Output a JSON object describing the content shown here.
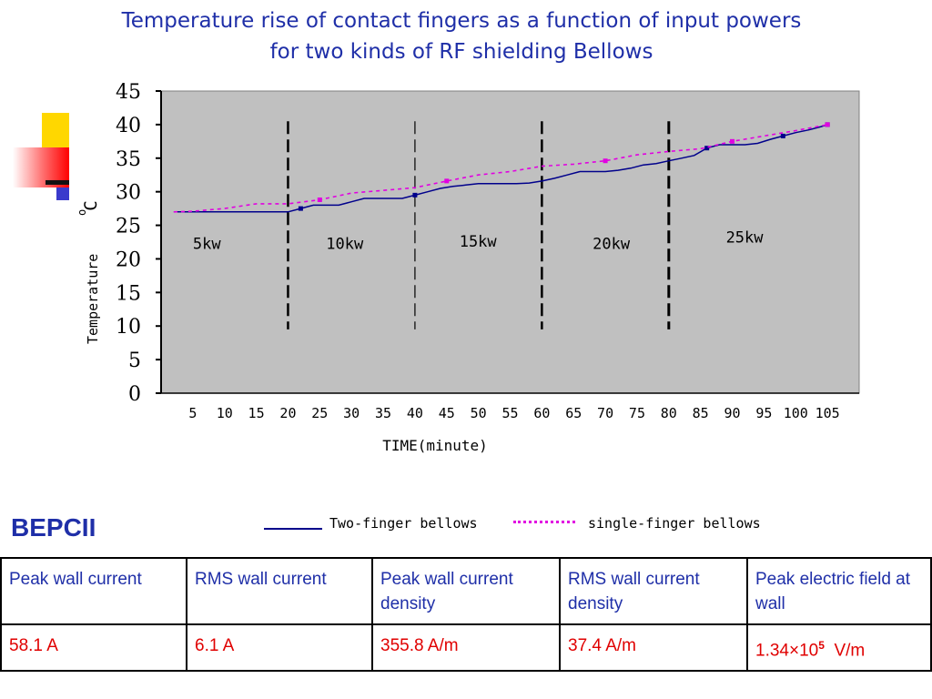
{
  "title_line1": "Temperature rise of contact fingers as a function of input powers",
  "title_line2": "for two kinds of RF shielding Bellows",
  "chart_data": {
    "type": "line",
    "xlabel": "TIME(minute)",
    "ylabel": "Temperature",
    "ylabel_unit": "o C",
    "xlim": [
      0,
      110
    ],
    "ylim": [
      0,
      45
    ],
    "xticks": [
      5,
      10,
      15,
      20,
      25,
      30,
      35,
      40,
      45,
      50,
      55,
      60,
      65,
      70,
      75,
      80,
      85,
      90,
      95,
      100,
      105
    ],
    "yticks": [
      0,
      5,
      10,
      15,
      20,
      25,
      30,
      35,
      40,
      45
    ],
    "grid": false,
    "background": "#c0c0c0",
    "phase_boundaries": [
      20,
      40,
      60,
      80
    ],
    "phases": [
      {
        "label": "5kw",
        "x": 5,
        "y": 21.5
      },
      {
        "label": "10kw",
        "x": 26,
        "y": 21.5
      },
      {
        "label": "15kw",
        "x": 47,
        "y": 21.8
      },
      {
        "label": "20kw",
        "x": 68,
        "y": 21.5
      },
      {
        "label": "25kw",
        "x": 89,
        "y": 22.4
      }
    ],
    "series": [
      {
        "name": "Two-finger bellows",
        "color": "#00008b",
        "style": "solid",
        "x": [
          2,
          5,
          10,
          15,
          18,
          20,
          22,
          24,
          26,
          28,
          30,
          32,
          34,
          36,
          38,
          40,
          42,
          44,
          46,
          48,
          50,
          52,
          54,
          56,
          58,
          60,
          62,
          64,
          66,
          68,
          70,
          72,
          74,
          76,
          78,
          80,
          82,
          84,
          86,
          88,
          90,
          92,
          94,
          96,
          98,
          100,
          102,
          104,
          105
        ],
        "y": [
          27,
          27,
          27,
          27,
          27,
          27,
          27.5,
          28,
          28,
          28,
          28.5,
          29,
          29,
          29,
          29,
          29.5,
          30,
          30.5,
          30.8,
          31,
          31.2,
          31.2,
          31.2,
          31.2,
          31.3,
          31.6,
          32,
          32.5,
          33,
          33,
          33,
          33.2,
          33.5,
          34,
          34.2,
          34.6,
          35,
          35.4,
          36.5,
          37,
          37,
          37,
          37.2,
          37.8,
          38.3,
          38.8,
          39.2,
          39.7,
          40
        ]
      },
      {
        "name": "single-finger bellows",
        "color": "#e100e1",
        "style": "dotted",
        "x": [
          2,
          5,
          10,
          15,
          20,
          25,
          30,
          35,
          40,
          45,
          50,
          55,
          60,
          65,
          70,
          75,
          80,
          85,
          90,
          95,
          100,
          105
        ],
        "y": [
          27,
          27.1,
          27.5,
          28.2,
          28.2,
          28.8,
          29.8,
          30.2,
          30.6,
          31.6,
          32.5,
          33,
          33.8,
          34.1,
          34.6,
          35.5,
          36,
          36.4,
          37.5,
          38.3,
          39.1,
          40
        ]
      }
    ]
  },
  "bepcii_label": "BEPCII",
  "legend": {
    "solid_label": "Two-finger bellows",
    "dotted_label": "single-finger bellows"
  },
  "table": {
    "headers": [
      "Peak wall current",
      "RMS wall current",
      "Peak wall current density",
      "RMS wall current density",
      "Peak electric field at wall"
    ],
    "values": [
      "58.1 A",
      "6.1 A",
      "355.8 A/m",
      "37.4 A/m"
    ],
    "efield": {
      "mantissa": "1.34×10",
      "exponent": "5",
      "unit": "V/m"
    }
  }
}
